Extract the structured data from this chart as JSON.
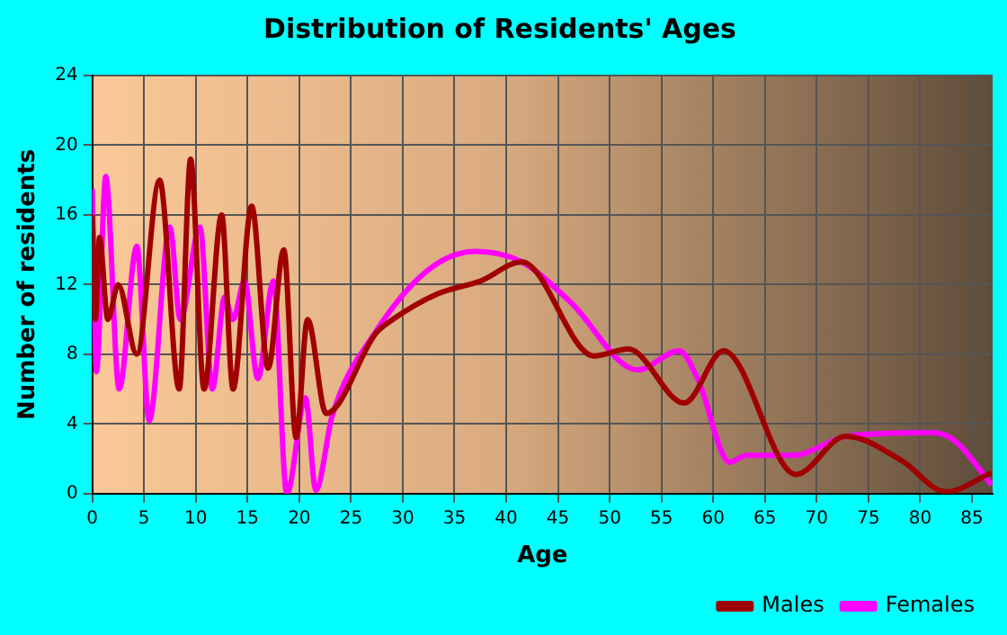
{
  "chart_data": {
    "type": "line",
    "title": "Distribution of Residents' Ages",
    "xlabel": "Age",
    "ylabel": "Number of residents",
    "xlim": [
      0,
      87
    ],
    "xticks": [
      0,
      5,
      10,
      15,
      20,
      25,
      30,
      35,
      40,
      45,
      50,
      55,
      60,
      65,
      70,
      75,
      80,
      85
    ],
    "ylim": [
      0,
      24
    ],
    "yticks": [
      0,
      4,
      8,
      12,
      16,
      20,
      24
    ],
    "grid": true,
    "legend": "bottom right",
    "series": [
      {
        "name": "Males",
        "color": "#a00000",
        "x": [
          0,
          0.3,
          0.7,
          1.5,
          2.5,
          4.3,
          6.5,
          8.4,
          9.5,
          10.8,
          12.5,
          13.6,
          15.4,
          17,
          18.5,
          19.7,
          20.8,
          22.6,
          27.4,
          28.8,
          33.5,
          37.5,
          41.5,
          48.5,
          51.8,
          57.2,
          61,
          68,
          72.8,
          78.2,
          82.5,
          86.9
        ],
        "values": [
          16,
          10,
          14.7,
          10,
          12,
          8,
          18,
          6,
          19.2,
          6,
          16,
          6,
          16.5,
          7.2,
          14,
          3.2,
          10,
          4.6,
          9.2,
          9.9,
          11.5,
          12.2,
          13.3,
          7.9,
          8.3,
          5.2,
          8.2,
          1.1,
          3.3,
          1.9,
          0.1,
          1.2
        ]
      },
      {
        "name": "Females",
        "color": "#ff00ff",
        "x": [
          0,
          0.4,
          1.3,
          2.6,
          4.3,
          5.5,
          7.5,
          8.5,
          10.4,
          11.6,
          12.8,
          13.6,
          14.7,
          16,
          17.5,
          18.8,
          20.6,
          21.6,
          23.2,
          27.4,
          32.6,
          37,
          41.5,
          46.2,
          52.7,
          56.7,
          58.5,
          61.6,
          63.2,
          67.7,
          73,
          81.2,
          83.4,
          86.9
        ],
        "values": [
          17.5,
          7,
          18.2,
          6,
          14.2,
          4.2,
          15.3,
          10,
          15.3,
          6,
          11.3,
          10,
          12.2,
          6.6,
          12.2,
          0,
          5.5,
          0.2,
          4.5,
          9.3,
          12.9,
          13.9,
          13.3,
          11,
          7.1,
          8.2,
          6.6,
          1.8,
          2.2,
          2.2,
          3.3,
          3.5,
          3,
          0.5
        ]
      }
    ]
  }
}
